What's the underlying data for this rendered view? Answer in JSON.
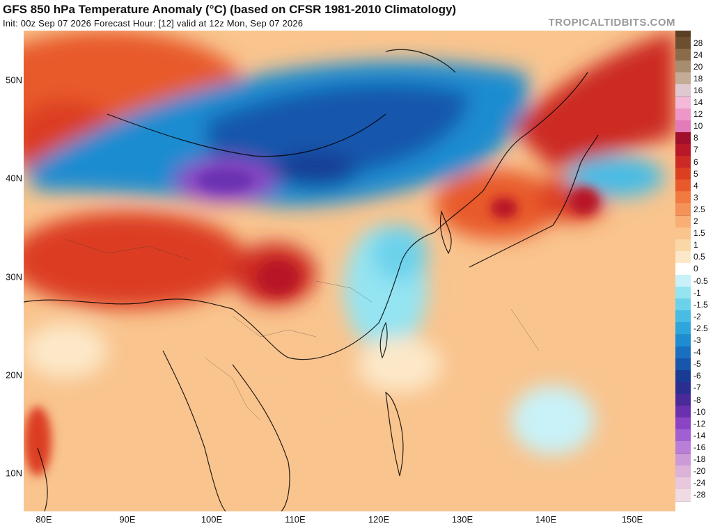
{
  "header": {
    "title": "GFS 850 hPa Temperature Anomaly (°C) (based on CFSR 1981-2010 Climatology)",
    "subtitle": "Init: 00z Sep 07 2026   Forecast Hour: [12]   valid at 12z Mon, Sep 07 2026",
    "brand": "TROPICALTIDBITS.COM"
  },
  "axes": {
    "lat_labels": [
      "50N",
      "40N",
      "30N",
      "20N",
      "10N"
    ],
    "lon_labels": [
      "80E",
      "90E",
      "100E",
      "110E",
      "120E",
      "130E",
      "140E",
      "150E"
    ]
  },
  "colorbar": {
    "labels": [
      "28",
      "24",
      "20",
      "18",
      "16",
      "14",
      "12",
      "10",
      "8",
      "7",
      "6",
      "5",
      "4",
      "3",
      "2.5",
      "2",
      "1.5",
      "1",
      "0.5",
      "0",
      "-0.5",
      "-1",
      "-1.5",
      "-2",
      "-2.5",
      "-3",
      "-4",
      "-5",
      "-6",
      "-7",
      "-8",
      "-10",
      "-12",
      "-14",
      "-16",
      "-18",
      "-20",
      "-24",
      "-28"
    ],
    "colors": [
      "#6b4f2e",
      "#8a6b4a",
      "#a88c6e",
      "#c4ab95",
      "#e0c8d0",
      "#f4b8d8",
      "#ee96c8",
      "#e27bb8",
      "#a0102a",
      "#b81828",
      "#cc2a24",
      "#dc3e20",
      "#e85a2c",
      "#f07a40",
      "#f5925a",
      "#f8ae74",
      "#f9c48e",
      "#fad8a6",
      "#fce8c8",
      "#ffffff",
      "#c8f2f8",
      "#94e4f2",
      "#6cd2ec",
      "#48bce4",
      "#2ea6dc",
      "#1e8cd0",
      "#1a70c0",
      "#1856ac",
      "#183c94",
      "#2a2e90",
      "#4a2a98",
      "#6a30b0",
      "#8a44c4",
      "#a060d2",
      "#b87ed8",
      "#cc9ad8",
      "#dcb2d8",
      "#e8c8dc",
      "#f0dae4"
    ]
  }
}
